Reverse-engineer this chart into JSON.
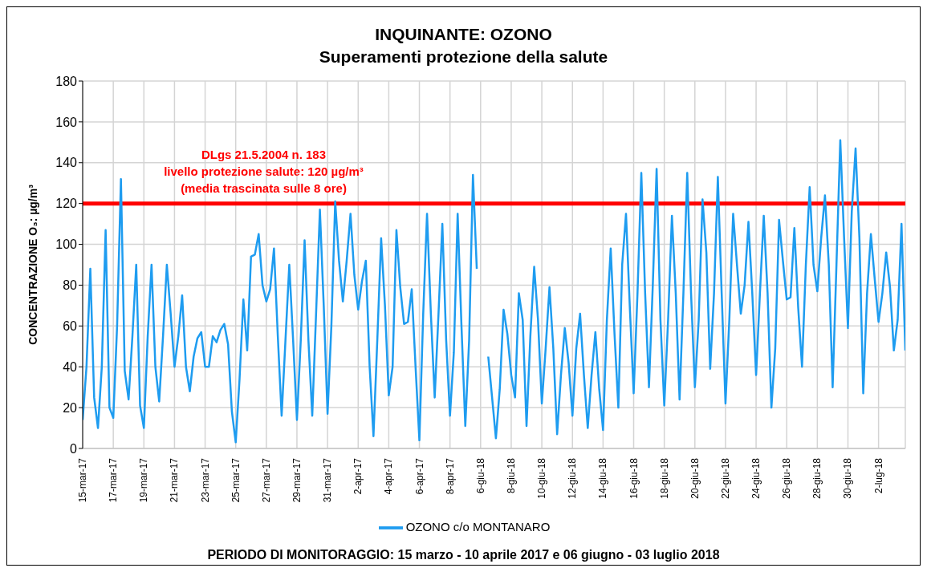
{
  "chart_data": {
    "type": "line",
    "title": "INQUINANTE:  OZONO",
    "subtitle": "Superamenti protezione della salute",
    "ylabel": "CONCENTRAZIONE O₃: µg/m³",
    "categories": [
      "15-mar-17",
      null,
      null,
      null,
      null,
      null,
      null,
      null,
      "17-mar-17",
      null,
      null,
      null,
      null,
      null,
      null,
      null,
      "19-mar-17",
      null,
      null,
      null,
      null,
      null,
      null,
      null,
      "21-mar-17",
      null,
      null,
      null,
      null,
      null,
      null,
      null,
      "23-mar-17",
      null,
      null,
      null,
      null,
      null,
      null,
      null,
      "25-mar-17",
      null,
      null,
      null,
      null,
      null,
      null,
      null,
      "27-mar-17",
      null,
      null,
      null,
      null,
      null,
      null,
      null,
      "29-mar-17",
      null,
      null,
      null,
      null,
      null,
      null,
      null,
      "31-mar-17",
      null,
      null,
      null,
      null,
      null,
      null,
      null,
      "2-apr-17",
      null,
      null,
      null,
      null,
      null,
      null,
      null,
      "4-apr-17",
      null,
      null,
      null,
      null,
      null,
      null,
      null,
      "6-apr-17",
      null,
      null,
      null,
      null,
      null,
      null,
      null,
      "8-apr-17",
      null,
      null,
      null,
      null,
      null,
      null,
      null,
      "6-giu-18",
      null,
      null,
      null,
      null,
      null,
      null,
      null,
      "8-giu-18",
      null,
      null,
      null,
      null,
      null,
      null,
      null,
      "10-giu-18",
      null,
      null,
      null,
      null,
      null,
      null,
      null,
      "12-giu-18",
      null,
      null,
      null,
      null,
      null,
      null,
      null,
      "14-giu-18",
      null,
      null,
      null,
      null,
      null,
      null,
      null,
      "16-giu-18",
      null,
      null,
      null,
      null,
      null,
      null,
      null,
      "18-giu-18",
      null,
      null,
      null,
      null,
      null,
      null,
      null,
      "20-giu-18",
      null,
      null,
      null,
      null,
      null,
      null,
      null,
      "22-giu-18",
      null,
      null,
      null,
      null,
      null,
      null,
      null,
      "24-giu-18",
      null,
      null,
      null,
      null,
      null,
      null,
      null,
      "26-giu-18",
      null,
      null,
      null,
      null,
      null,
      null,
      null,
      "28-giu-18",
      null,
      null,
      null,
      null,
      null,
      null,
      null,
      "30-giu-18",
      null,
      null,
      null,
      null,
      null,
      null,
      null,
      "2-lug-18",
      null,
      null,
      null,
      null,
      null,
      null,
      null
    ],
    "series": [
      {
        "name": "OZONO c/o MONTANARO",
        "color": "#1e9cf0",
        "values": [
          14,
          40,
          88,
          25,
          10,
          40,
          107,
          20,
          15,
          60,
          132,
          38,
          24,
          55,
          90,
          21,
          10,
          55,
          90,
          40,
          23,
          55,
          90,
          66,
          40,
          55,
          75,
          40,
          28,
          45,
          54,
          57,
          40,
          40,
          55,
          52,
          58,
          61,
          51,
          18,
          3,
          34,
          73,
          48,
          94,
          95,
          105,
          80,
          72,
          78,
          98,
          55,
          16,
          53,
          90,
          53,
          14,
          53,
          102,
          53,
          16,
          66,
          117,
          70,
          17,
          60,
          121,
          92,
          72,
          92,
          115,
          85,
          68,
          82,
          92,
          40,
          6,
          53,
          103,
          70,
          26,
          40,
          107,
          79,
          61,
          62,
          78,
          40,
          4,
          66,
          115,
          66,
          25,
          66,
          110,
          53,
          16,
          47,
          115,
          60,
          11,
          53,
          134,
          88,
          null,
          null,
          45,
          25,
          5,
          29,
          68,
          56,
          36,
          25,
          76,
          63,
          11,
          55,
          89,
          63,
          22,
          49,
          79,
          49,
          7,
          36,
          59,
          42,
          16,
          49,
          66,
          36,
          10,
          36,
          57,
          29,
          9,
          63,
          98,
          56,
          20,
          90,
          115,
          69,
          27,
          76,
          135,
          76,
          30,
          80,
          137,
          63,
          21,
          63,
          114,
          76,
          24,
          76,
          135,
          76,
          30,
          63,
          122,
          96,
          39,
          76,
          133,
          76,
          22,
          63,
          115,
          90,
          66,
          80,
          111,
          76,
          36,
          76,
          114,
          76,
          20,
          49,
          112,
          92,
          73,
          74,
          108,
          69,
          40,
          90,
          128,
          90,
          77,
          103,
          124,
          90,
          30,
          90,
          151,
          103,
          59,
          116,
          147,
          103,
          27,
          76,
          105,
          83,
          62,
          76,
          96,
          79,
          48,
          63,
          110,
          48
        ]
      }
    ],
    "ylim": [
      0,
      180
    ],
    "yticks": [
      0,
      20,
      40,
      60,
      80,
      100,
      120,
      140,
      160,
      180
    ],
    "grid": true,
    "legend": "bottom",
    "marker": "none",
    "ref_lines": [
      {
        "axis": "y",
        "value": 120,
        "label": "DLgs 21.5.2004 n. 183\nlivello protezione salute: 120 µg/m³\n(media trascinata sulle 8 ore)",
        "color": "#ff0000"
      }
    ],
    "annotations": [
      "PERIODO DI MONITORAGGIO: 15 marzo - 10 aprile 2017 e 06 giugno - 03 luglio 2018"
    ]
  }
}
